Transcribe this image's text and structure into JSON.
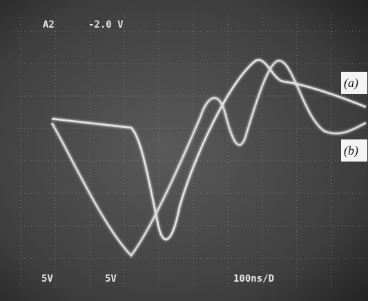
{
  "screen": {
    "channel": "A2",
    "offset": "-2.0 V",
    "scale_1": "5V",
    "scale_2": "5V",
    "timebase": "100ns/D"
  },
  "labels": {
    "a": "(a)",
    "b": "(b)"
  }
}
